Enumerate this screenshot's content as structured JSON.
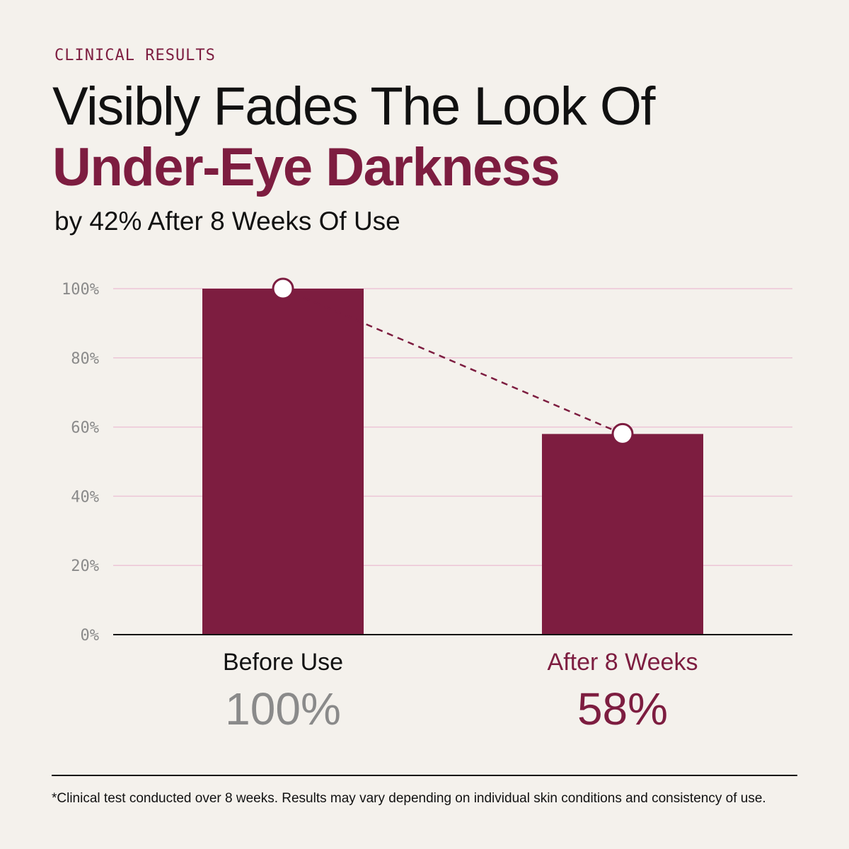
{
  "eyebrow": "CLINICAL RESULTS",
  "headline": {
    "line1": "Visibly Fades The Look Of",
    "line2": "Under-Eye Darkness"
  },
  "subhead": "by 42% After 8 Weeks Of Use",
  "colors": {
    "accent": "#7d1d40",
    "bar": "#7d1d40",
    "gridline": "#ecc5d6",
    "muted_value": "#8a8a8a",
    "background": "#f4f1ec"
  },
  "chart_data": {
    "type": "bar",
    "categories": [
      "Before Use",
      "After 8 Weeks"
    ],
    "values": [
      100,
      58
    ],
    "value_labels": [
      "100%",
      "58%"
    ],
    "ylim": [
      0,
      100
    ],
    "yticks": [
      0,
      20,
      40,
      60,
      80,
      100
    ],
    "ytick_labels": [
      "0%",
      "20%",
      "40%",
      "60%",
      "80%",
      "100%"
    ],
    "grid": true,
    "markers": "circle markers at each bar top joined by a dashed line"
  },
  "footnote": "*Clinical test conducted over 8 weeks. Results may vary depending on individual skin conditions and consistency of use."
}
